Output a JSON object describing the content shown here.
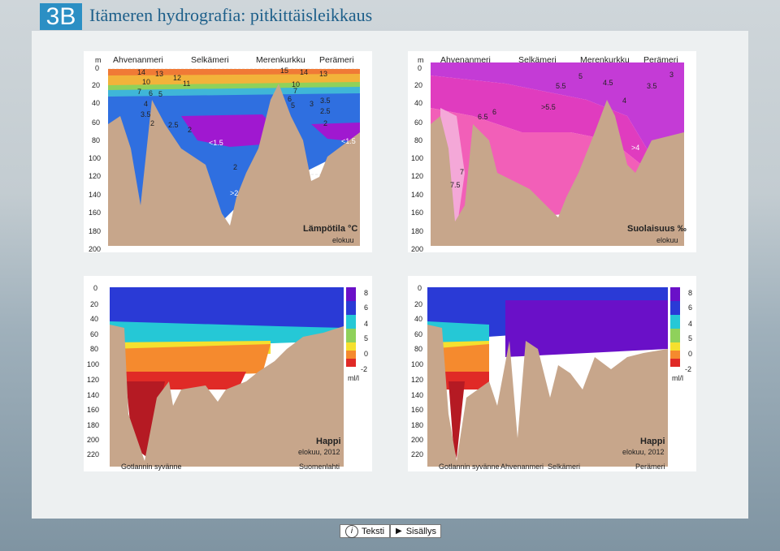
{
  "header": {
    "badge": "3B",
    "title": "Itämeren hydrografia: pitkittäisleikkaus"
  },
  "temp": {
    "depth_unit": "m",
    "depths": [
      "0",
      "20",
      "40",
      "60",
      "80",
      "100",
      "120",
      "140",
      "160",
      "180",
      "200"
    ],
    "regions": [
      "Ahvenanmeri",
      "Selkämeri",
      "Merenkurkku",
      "Perämeri"
    ],
    "contour_labels": [
      "14",
      "13",
      "12",
      "11",
      "15",
      "14",
      "13",
      "10",
      "7",
      "6",
      "5",
      "4",
      "3.5",
      "2",
      "2.5",
      "2",
      "<1.5",
      "<1.5",
      "2",
      ">2",
      "3.5",
      "2.5",
      "2",
      "6",
      "5",
      "3",
      "10",
      "7"
    ],
    "caption": "Lämpötila °C",
    "sub": "elokuu"
  },
  "salt": {
    "depth_unit": "m",
    "depths": [
      "0",
      "20",
      "40",
      "60",
      "80",
      "100",
      "120",
      "140",
      "160",
      "180",
      "200"
    ],
    "regions": [
      "Ahvenanmeri",
      "Selkämeri",
      "Merenkurkku",
      "Perämeri"
    ],
    "contour_labels": [
      "5",
      "4.5",
      "3.5",
      "3",
      "5.5",
      ">5.5",
      "6",
      "6.5",
      "4",
      ">4",
      "7",
      "7.5"
    ],
    "caption": "Suolaisuus ‰",
    "sub": "elokuu"
  },
  "oxy1": {
    "depths": [
      "0",
      "20",
      "40",
      "60",
      "80",
      "100",
      "120",
      "140",
      "160",
      "180",
      "200",
      "220"
    ],
    "scale": [
      "8",
      "6",
      "4",
      "5",
      "0",
      "-2"
    ],
    "unit": "ml/l",
    "caption": "Happi",
    "sub": "elokuu, 2012",
    "bottom_left": "Gotlannin syvänne",
    "bottom_right": "Suomenlahti"
  },
  "oxy2": {
    "depths": [
      "0",
      "20",
      "40",
      "60",
      "80",
      "100",
      "120",
      "140",
      "160",
      "180",
      "200",
      "220"
    ],
    "scale": [
      "8",
      "6",
      "4",
      "5",
      "0",
      "-2"
    ],
    "unit": "ml/l",
    "caption": "Happi",
    "sub": "elokuu, 2012",
    "bottom_labels": [
      "Gotlannin syvänne",
      "Ahvenanmeri",
      "Selkämeri",
      "Perämeri"
    ]
  },
  "nav": {
    "text_label": "Teksti",
    "contents_label": "Sisällys"
  },
  "colors": {
    "seabed": "#c7a68b",
    "accent": "#2b8fc4"
  }
}
